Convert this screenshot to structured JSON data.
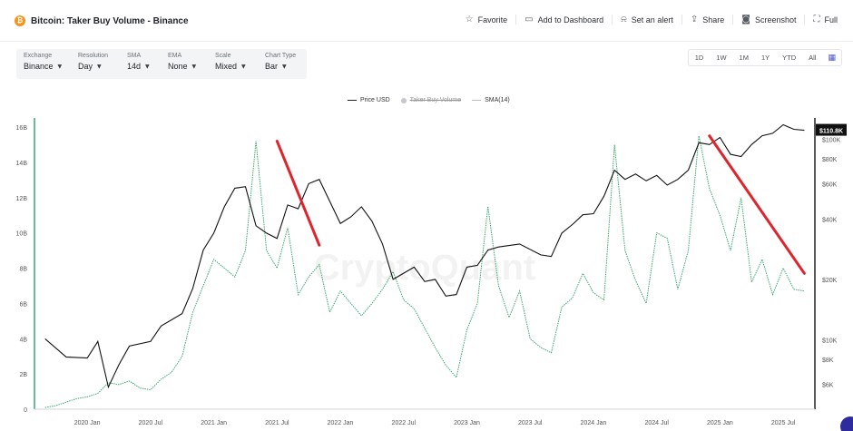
{
  "header": {
    "title": "Bitcoin: Taker Buy Volume - Binance",
    "logo_icon": "bitcoin-logo-icon",
    "logo_glyph": "₿",
    "actions": [
      {
        "label": "Favorite",
        "icon": "star-icon"
      },
      {
        "label": "Add to Dashboard",
        "icon": "dashboard-icon"
      },
      {
        "label": "Set an alert",
        "icon": "bell-icon"
      },
      {
        "label": "Share",
        "icon": "share-icon"
      },
      {
        "label": "Screenshot",
        "icon": "camera-icon"
      },
      {
        "label": "Full",
        "icon": "fullscreen-icon"
      }
    ]
  },
  "controls": [
    {
      "label": "Exchange",
      "value": "Binance"
    },
    {
      "label": "Resolution",
      "value": "Day"
    },
    {
      "label": "SMA",
      "value": "14d"
    },
    {
      "label": "EMA",
      "value": "None"
    },
    {
      "label": "Scale",
      "value": "Mixed"
    },
    {
      "label": "Chart Type",
      "value": "Bar"
    }
  ],
  "ranges": [
    "1D",
    "1W",
    "1M",
    "1Y",
    "YTD",
    "All"
  ],
  "legend": {
    "price": "Price USD",
    "volume": "Taker Buy Volume",
    "sma": "SMA(14)"
  },
  "watermark": "CryptoQuant",
  "price_badge": "$110.8K",
  "colors": {
    "price": "#111111",
    "sma": "#3aa76d",
    "trend": "#e0242c",
    "accent": "#4a55d1",
    "bitcoin": "#f7931a"
  },
  "chart_data": {
    "type": "line",
    "x_ticks": [
      "2020 Jan",
      "2020 Jul",
      "2021 Jan",
      "2021 Jul",
      "2022 Jan",
      "2022 Jul",
      "2023 Jan",
      "2023 Jul",
      "2024 Jan",
      "2024 Jul",
      "2025 Jan",
      "2025 Jul"
    ],
    "left_axis": {
      "ticks": [
        "0",
        "2B",
        "4B",
        "6B",
        "8B",
        "10B",
        "12B",
        "14B",
        "16B"
      ],
      "ylim": [
        0,
        16000000000
      ]
    },
    "right_axis": {
      "scale": "log",
      "ticks": [
        "$6K",
        "$8K",
        "$10K",
        "$20K",
        "$40K",
        "$60K",
        "$80K",
        "$100K"
      ]
    },
    "series": [
      {
        "name": "Price USD",
        "axis": "right",
        "points": [
          [
            "2019-09",
            10100
          ],
          [
            "2019-11",
            8200
          ],
          [
            "2020-01",
            8100
          ],
          [
            "2020-02",
            9800
          ],
          [
            "2020-03",
            5800
          ],
          [
            "2020-04",
            7500
          ],
          [
            "2020-05",
            9300
          ],
          [
            "2020-07",
            9800
          ],
          [
            "2020-08",
            11700
          ],
          [
            "2020-10",
            13500
          ],
          [
            "2020-11",
            18000
          ],
          [
            "2020-12",
            28000
          ],
          [
            "2021-01",
            34000
          ],
          [
            "2021-02",
            46000
          ],
          [
            "2021-03",
            57000
          ],
          [
            "2021-04",
            58000
          ],
          [
            "2021-05",
            37000
          ],
          [
            "2021-06",
            34000
          ],
          [
            "2021-07",
            32000
          ],
          [
            "2021-08",
            47000
          ],
          [
            "2021-09",
            45000
          ],
          [
            "2021-10",
            60000
          ],
          [
            "2021-11",
            63000
          ],
          [
            "2021-12",
            49000
          ],
          [
            "2022-01",
            38000
          ],
          [
            "2022-02",
            41000
          ],
          [
            "2022-03",
            46000
          ],
          [
            "2022-04",
            39000
          ],
          [
            "2022-05",
            30000
          ],
          [
            "2022-06",
            20000
          ],
          [
            "2022-08",
            23000
          ],
          [
            "2022-09",
            19500
          ],
          [
            "2022-10",
            20000
          ],
          [
            "2022-11",
            16500
          ],
          [
            "2022-12",
            16800
          ],
          [
            "2023-01",
            23000
          ],
          [
            "2023-02",
            23500
          ],
          [
            "2023-03",
            28000
          ],
          [
            "2023-04",
            29000
          ],
          [
            "2023-06",
            30000
          ],
          [
            "2023-08",
            26500
          ],
          [
            "2023-09",
            26000
          ],
          [
            "2023-10",
            34000
          ],
          [
            "2023-11",
            37500
          ],
          [
            "2023-12",
            42000
          ],
          [
            "2024-01",
            42500
          ],
          [
            "2024-02",
            52000
          ],
          [
            "2024-03",
            70000
          ],
          [
            "2024-04",
            63000
          ],
          [
            "2024-05",
            67000
          ],
          [
            "2024-06",
            62000
          ],
          [
            "2024-07",
            66000
          ],
          [
            "2024-08",
            59000
          ],
          [
            "2024-09",
            63000
          ],
          [
            "2024-10",
            70000
          ],
          [
            "2024-11",
            96000
          ],
          [
            "2024-12",
            94000
          ],
          [
            "2025-01",
            102000
          ],
          [
            "2025-02",
            84000
          ],
          [
            "2025-03",
            82000
          ],
          [
            "2025-04",
            94000
          ],
          [
            "2025-05",
            104000
          ],
          [
            "2025-06",
            107000
          ],
          [
            "2025-07",
            118000
          ],
          [
            "2025-08",
            112000
          ],
          [
            "2025-09",
            110800
          ]
        ]
      },
      {
        "name": "SMA(14)",
        "axis": "left",
        "points": [
          [
            "2019-09",
            100000000
          ],
          [
            "2019-10",
            200000000
          ],
          [
            "2019-11",
            400000000
          ],
          [
            "2019-12",
            600000000
          ],
          [
            "2020-01",
            700000000
          ],
          [
            "2020-02",
            900000000
          ],
          [
            "2020-03",
            1500000000
          ],
          [
            "2020-04",
            1400000000
          ],
          [
            "2020-05",
            1600000000
          ],
          [
            "2020-06",
            1200000000
          ],
          [
            "2020-07",
            1100000000
          ],
          [
            "2020-08",
            1700000000
          ],
          [
            "2020-09",
            2100000000
          ],
          [
            "2020-10",
            3000000000
          ],
          [
            "2020-11",
            5500000000
          ],
          [
            "2020-12",
            7000000000
          ],
          [
            "2021-01",
            8500000000
          ],
          [
            "2021-02",
            8000000000
          ],
          [
            "2021-03",
            7500000000
          ],
          [
            "2021-04",
            9000000000
          ],
          [
            "2021-05",
            15200000000
          ],
          [
            "2021-06",
            9000000000
          ],
          [
            "2021-07",
            8000000000
          ],
          [
            "2021-08",
            10300000000
          ],
          [
            "2021-09",
            6500000000
          ],
          [
            "2021-10",
            7500000000
          ],
          [
            "2021-11",
            8200000000
          ],
          [
            "2021-12",
            5500000000
          ],
          [
            "2022-01",
            6700000000
          ],
          [
            "2022-02",
            6000000000
          ],
          [
            "2022-03",
            5300000000
          ],
          [
            "2022-04",
            6000000000
          ],
          [
            "2022-05",
            6800000000
          ],
          [
            "2022-06",
            7800000000
          ],
          [
            "2022-07",
            6200000000
          ],
          [
            "2022-08",
            5700000000
          ],
          [
            "2022-09",
            4600000000
          ],
          [
            "2022-10",
            3500000000
          ],
          [
            "2022-11",
            2500000000
          ],
          [
            "2022-12",
            1800000000
          ],
          [
            "2023-01",
            4500000000
          ],
          [
            "2023-02",
            6000000000
          ],
          [
            "2023-03",
            11500000000
          ],
          [
            "2023-04",
            7000000000
          ],
          [
            "2023-05",
            5200000000
          ],
          [
            "2023-06",
            6700000000
          ],
          [
            "2023-07",
            4000000000
          ],
          [
            "2023-08",
            3500000000
          ],
          [
            "2023-09",
            3200000000
          ],
          [
            "2023-10",
            5800000000
          ],
          [
            "2023-11",
            6300000000
          ],
          [
            "2023-12",
            7700000000
          ],
          [
            "2024-01",
            6600000000
          ],
          [
            "2024-02",
            6200000000
          ],
          [
            "2024-03",
            15000000000
          ],
          [
            "2024-04",
            9000000000
          ],
          [
            "2024-05",
            7300000000
          ],
          [
            "2024-06",
            6000000000
          ],
          [
            "2024-07",
            10000000000
          ],
          [
            "2024-08",
            9700000000
          ],
          [
            "2024-09",
            6800000000
          ],
          [
            "2024-10",
            9000000000
          ],
          [
            "2024-11",
            15500000000
          ],
          [
            "2024-12",
            12500000000
          ],
          [
            "2025-01",
            11000000000
          ],
          [
            "2025-02",
            9000000000
          ],
          [
            "2025-03",
            12000000000
          ],
          [
            "2025-04",
            7200000000
          ],
          [
            "2025-05",
            8500000000
          ],
          [
            "2025-06",
            6500000000
          ],
          [
            "2025-07",
            8000000000
          ],
          [
            "2025-08",
            6800000000
          ],
          [
            "2025-09",
            6700000000
          ]
        ]
      }
    ],
    "annotations": [
      {
        "type": "trend-line",
        "from": [
          "2021-07",
          15200000000
        ],
        "to": [
          "2021-11",
          9300000000
        ]
      },
      {
        "type": "trend-line",
        "from": [
          "2024-12",
          15500000000
        ],
        "to": [
          "2025-09",
          7700000000
        ]
      }
    ],
    "grid": false,
    "legend_position": "top-center"
  }
}
